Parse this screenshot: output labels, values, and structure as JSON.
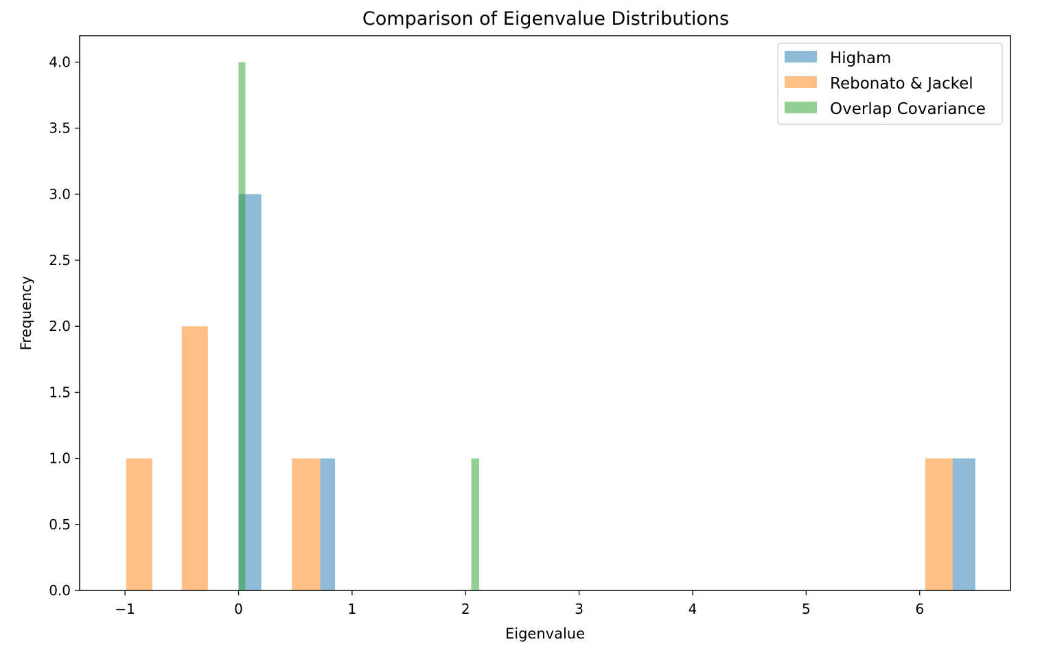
{
  "chart_data": {
    "type": "bar",
    "title": "Comparison of Eigenvalue Distributions",
    "xlabel": "Eigenvalue",
    "ylabel": "Frequency",
    "xlim": [
      -1.4,
      6.8
    ],
    "ylim": [
      0,
      4.2
    ],
    "xticks": [
      {
        "value": -1,
        "label": "−1"
      },
      {
        "value": 0,
        "label": "0"
      },
      {
        "value": 1,
        "label": "1"
      },
      {
        "value": 2,
        "label": "2"
      },
      {
        "value": 3,
        "label": "3"
      },
      {
        "value": 4,
        "label": "4"
      },
      {
        "value": 5,
        "label": "5"
      },
      {
        "value": 6,
        "label": "6"
      }
    ],
    "yticks": [
      {
        "value": 0.0,
        "label": "0.0"
      },
      {
        "value": 0.5,
        "label": "0.5"
      },
      {
        "value": 1.0,
        "label": "1.0"
      },
      {
        "value": 1.5,
        "label": "1.5"
      },
      {
        "value": 2.0,
        "label": "2.0"
      },
      {
        "value": 2.5,
        "label": "2.5"
      },
      {
        "value": 3.0,
        "label": "3.0"
      },
      {
        "value": 3.5,
        "label": "3.5"
      },
      {
        "value": 4.0,
        "label": "4.0"
      }
    ],
    "grid": false,
    "legend_position": "top-right",
    "bar_opacity": 0.5,
    "series": [
      {
        "name": "Higham",
        "color": "#1f77b4",
        "bins": [
          {
            "x0": 0.0,
            "x1": 0.2,
            "count": 3
          },
          {
            "x0": 0.72,
            "x1": 0.85,
            "count": 1
          },
          {
            "x0": 6.29,
            "x1": 6.49,
            "count": 1
          }
        ]
      },
      {
        "name": "Rebonato & Jackel",
        "color": "#ff7f0e",
        "bins": [
          {
            "x0": -0.99,
            "x1": -0.76,
            "count": 1
          },
          {
            "x0": -0.5,
            "x1": -0.27,
            "count": 2
          },
          {
            "x0": 0.47,
            "x1": 0.72,
            "count": 1
          },
          {
            "x0": 6.05,
            "x1": 6.29,
            "count": 1
          }
        ]
      },
      {
        "name": "Overlap Covariance",
        "color": "#2ca02c",
        "bins": [
          {
            "x0": 0.0,
            "x1": 0.06,
            "count": 4
          },
          {
            "x0": 2.05,
            "x1": 2.12,
            "count": 1
          }
        ]
      }
    ]
  }
}
